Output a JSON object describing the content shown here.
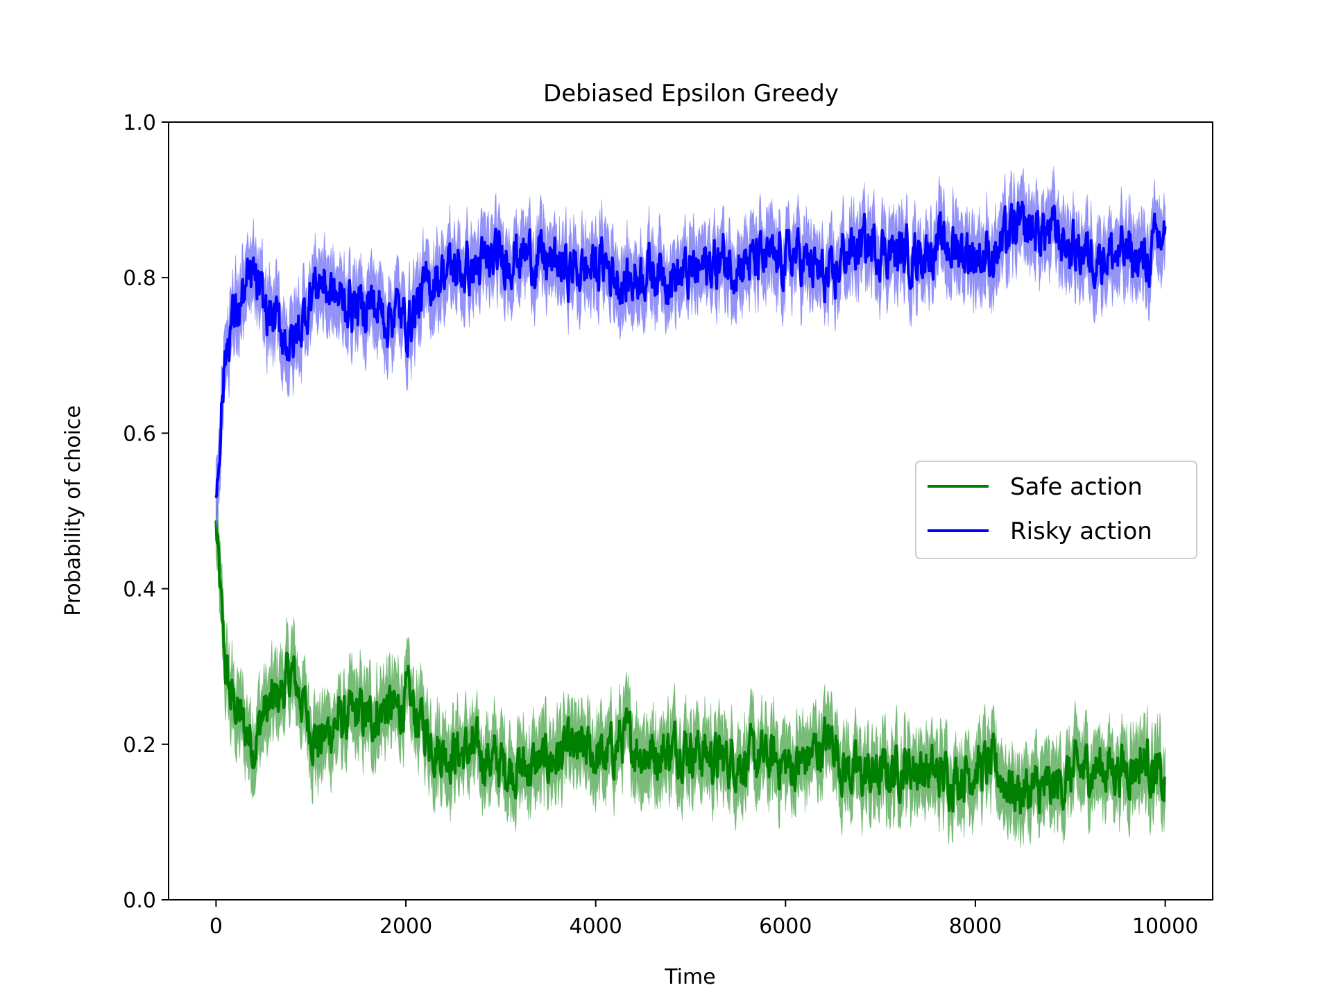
{
  "chart_data": {
    "type": "line",
    "title": "Debiased Epsilon Greedy",
    "xlabel": "Time",
    "ylabel": "Probability of choice",
    "xlim": [
      -500,
      10500
    ],
    "ylim": [
      0.0,
      1.0
    ],
    "xticks": [
      0,
      2000,
      4000,
      6000,
      8000,
      10000
    ],
    "xtick_labels": [
      "0",
      "2000",
      "4000",
      "6000",
      "8000",
      "10000"
    ],
    "yticks": [
      0.0,
      0.2,
      0.4,
      0.6,
      0.8,
      1.0
    ],
    "ytick_labels": [
      "0.0",
      "0.2",
      "0.4",
      "0.6",
      "0.8",
      "1.0"
    ],
    "grid": false,
    "legend_position": "center-right",
    "series": [
      {
        "name": "Safe action",
        "color": "#008000",
        "band_color": "#4ca64c",
        "band_halfwidth": 0.04,
        "x": [
          0,
          30,
          60,
          100,
          150,
          200,
          300,
          400,
          500,
          600,
          700,
          800,
          900,
          1000,
          1100,
          1200,
          1300,
          1400,
          1500,
          1600,
          1700,
          1800,
          1900,
          2000,
          2100,
          2200,
          2300,
          2400,
          2500,
          2700,
          2900,
          3100,
          3300,
          3500,
          3700,
          3900,
          4100,
          4300,
          4500,
          4700,
          4900,
          5100,
          5300,
          5500,
          5700,
          5900,
          6100,
          6300,
          6400,
          6500,
          6600,
          6800,
          7000,
          7200,
          7400,
          7600,
          7800,
          8000,
          8200,
          8400,
          8600,
          8800,
          9000,
          9200,
          9400,
          9600,
          9800,
          10000
        ],
        "y": [
          0.48,
          0.42,
          0.36,
          0.3,
          0.26,
          0.25,
          0.22,
          0.2,
          0.24,
          0.25,
          0.27,
          0.29,
          0.26,
          0.22,
          0.2,
          0.22,
          0.23,
          0.23,
          0.24,
          0.23,
          0.24,
          0.25,
          0.24,
          0.26,
          0.24,
          0.22,
          0.2,
          0.19,
          0.19,
          0.19,
          0.18,
          0.17,
          0.17,
          0.18,
          0.19,
          0.19,
          0.18,
          0.21,
          0.19,
          0.19,
          0.2,
          0.19,
          0.18,
          0.18,
          0.18,
          0.18,
          0.17,
          0.19,
          0.2,
          0.21,
          0.17,
          0.16,
          0.16,
          0.17,
          0.17,
          0.16,
          0.16,
          0.17,
          0.17,
          0.14,
          0.14,
          0.14,
          0.16,
          0.17,
          0.17,
          0.17,
          0.18,
          0.14
        ]
      },
      {
        "name": "Risky action",
        "color": "#0000ff",
        "band_color": "#6f6ff5",
        "band_halfwidth": 0.04,
        "x": [
          0,
          30,
          60,
          100,
          150,
          200,
          300,
          400,
          500,
          600,
          700,
          800,
          900,
          1000,
          1100,
          1200,
          1300,
          1400,
          1500,
          1600,
          1700,
          1800,
          1900,
          2000,
          2100,
          2200,
          2300,
          2400,
          2500,
          2700,
          2900,
          3100,
          3300,
          3500,
          3700,
          3900,
          4100,
          4300,
          4500,
          4700,
          4900,
          5100,
          5300,
          5500,
          5700,
          5900,
          6100,
          6300,
          6400,
          6500,
          6600,
          6800,
          7000,
          7200,
          7400,
          7600,
          7800,
          8000,
          8200,
          8400,
          8600,
          8800,
          9000,
          9200,
          9400,
          9600,
          9800,
          10000
        ],
        "y": [
          0.52,
          0.58,
          0.64,
          0.7,
          0.74,
          0.75,
          0.78,
          0.8,
          0.76,
          0.75,
          0.73,
          0.71,
          0.74,
          0.78,
          0.8,
          0.78,
          0.77,
          0.77,
          0.76,
          0.77,
          0.76,
          0.75,
          0.76,
          0.74,
          0.76,
          0.78,
          0.8,
          0.81,
          0.81,
          0.81,
          0.82,
          0.83,
          0.83,
          0.82,
          0.81,
          0.81,
          0.82,
          0.79,
          0.81,
          0.81,
          0.8,
          0.81,
          0.82,
          0.82,
          0.82,
          0.82,
          0.83,
          0.81,
          0.8,
          0.79,
          0.83,
          0.84,
          0.84,
          0.83,
          0.83,
          0.84,
          0.84,
          0.83,
          0.83,
          0.86,
          0.86,
          0.86,
          0.84,
          0.83,
          0.83,
          0.83,
          0.82,
          0.86
        ]
      }
    ]
  }
}
